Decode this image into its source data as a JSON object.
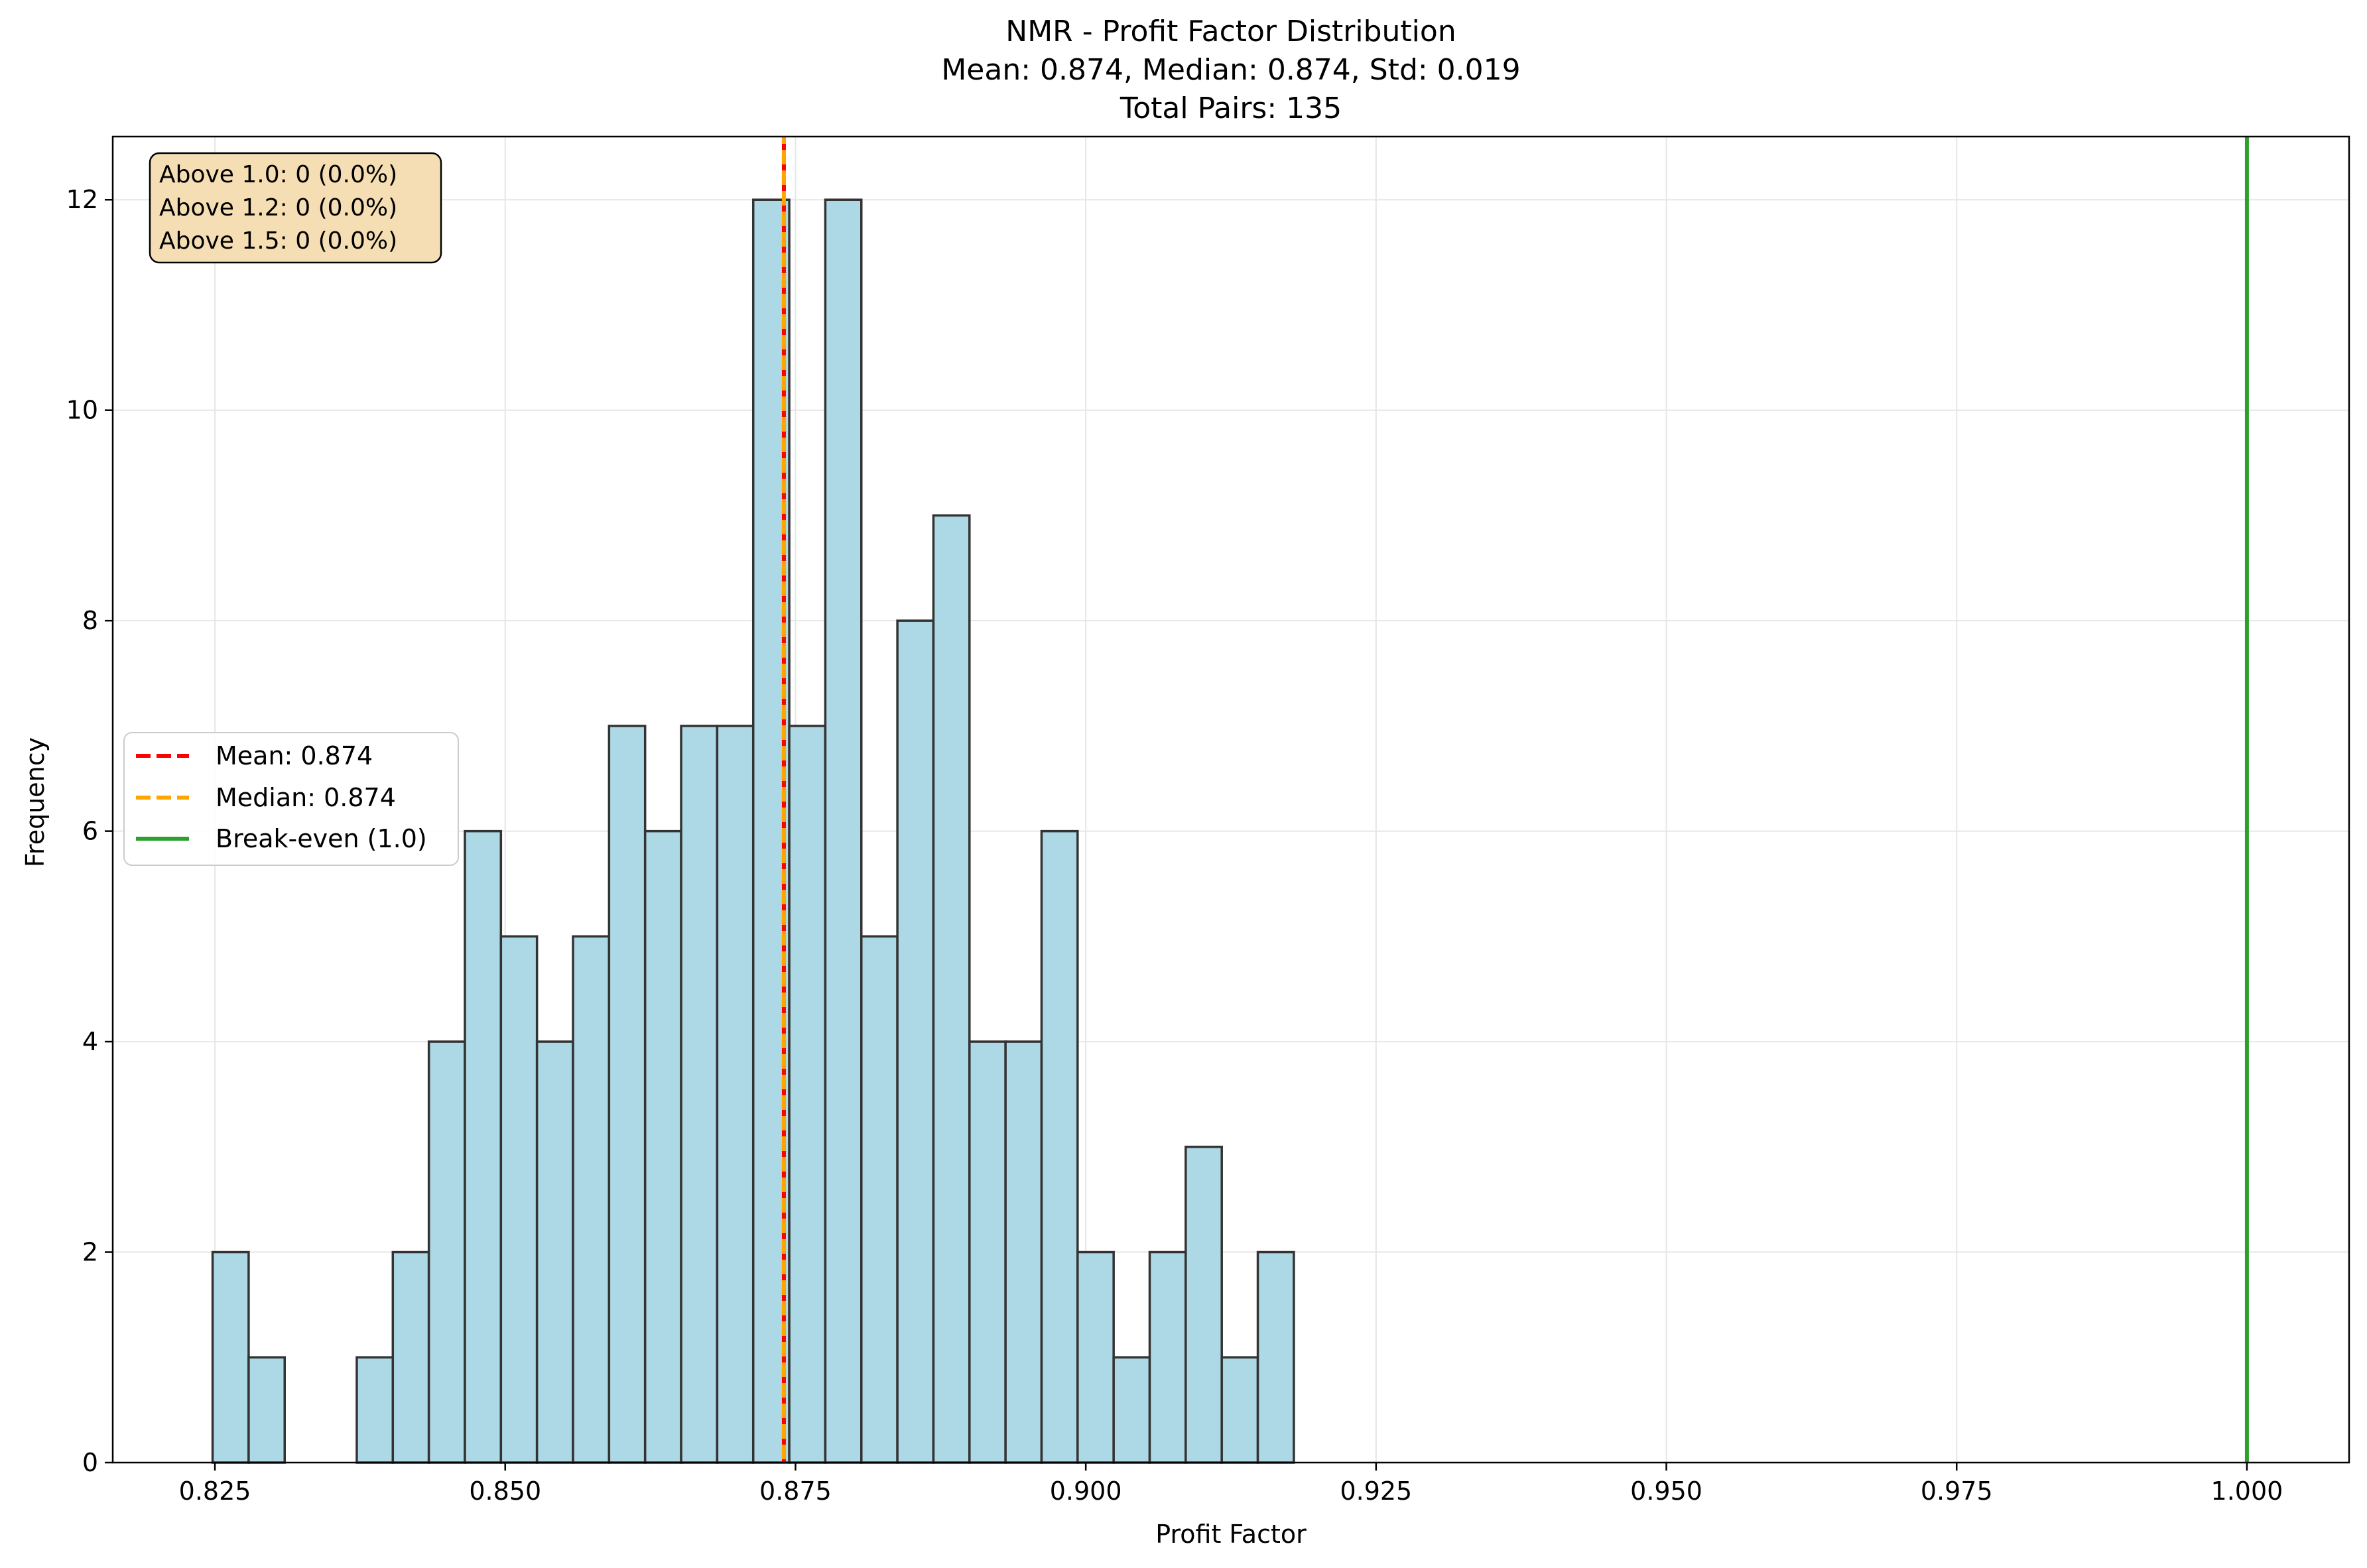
{
  "chart_data": {
    "type": "bar",
    "title": "NMR - Profit Factor Distribution",
    "subtitle_lines": [
      "Mean: 0.874, Median: 0.874, Std: 0.019",
      "Total Pairs: 135"
    ],
    "xlabel": "Profit Factor",
    "ylabel": "Frequency",
    "xlim": [
      0.8162,
      1.0088
    ],
    "ylim": [
      0,
      12.6
    ],
    "grid": true,
    "x_ticks": [
      0.825,
      0.85,
      0.875,
      0.9,
      0.925,
      0.95,
      0.975,
      1.0
    ],
    "x_tick_labels": [
      "0.825",
      "0.850",
      "0.875",
      "0.900",
      "0.925",
      "0.950",
      "0.975",
      "1.000"
    ],
    "y_ticks": [
      0,
      2,
      4,
      6,
      8,
      10,
      12
    ],
    "y_tick_labels": [
      "0",
      "2",
      "4",
      "6",
      "8",
      "10",
      "12"
    ],
    "bin_start": 0.8248,
    "bin_width": 0.003104,
    "counts": [
      2,
      1,
      0,
      0,
      1,
      2,
      4,
      6,
      5,
      4,
      5,
      7,
      6,
      7,
      7,
      12,
      7,
      12,
      5,
      8,
      9,
      4,
      4,
      6,
      2,
      1,
      2,
      3,
      1,
      2
    ],
    "bar_color": "#add8e6",
    "bar_edge_color": "#333333",
    "reference_lines": [
      {
        "label": "Mean: 0.874",
        "x": 0.874,
        "color": "#ff0000",
        "style": "dashed"
      },
      {
        "label": "Median: 0.874",
        "x": 0.874,
        "color": "#ffa500",
        "style": "dashed"
      },
      {
        "label": "Break-even (1.0)",
        "x": 1.0,
        "color": "#2ca02c",
        "style": "solid"
      }
    ],
    "legend_position": "center-left",
    "annotation_box": {
      "lines": [
        "Above 1.0: 0 (0.0%)",
        "Above 1.2: 0 (0.0%)",
        "Above 1.5: 0 (0.0%)"
      ],
      "position": "top-left",
      "background": "#f5deb3"
    }
  }
}
